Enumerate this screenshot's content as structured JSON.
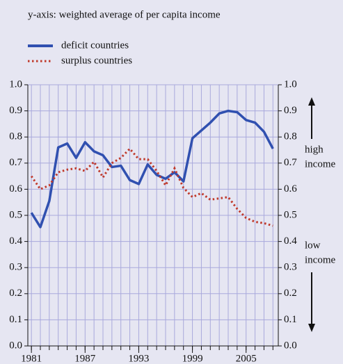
{
  "chart_data": {
    "type": "line",
    "subtitle": "y-axis: weighted average of per capita income",
    "x": [
      1981,
      1982,
      1983,
      1984,
      1985,
      1986,
      1987,
      1988,
      1989,
      1990,
      1991,
      1992,
      1993,
      1994,
      1995,
      1996,
      1997,
      1998,
      1999,
      2000,
      2001,
      2002,
      2003,
      2004,
      2005,
      2006,
      2007,
      2008
    ],
    "series": [
      {
        "name": "deficit countries",
        "color": "#3050b0",
        "values": [
          0.51,
          0.455,
          0.555,
          0.76,
          0.775,
          0.72,
          0.78,
          0.745,
          0.73,
          0.685,
          0.69,
          0.635,
          0.62,
          0.695,
          0.655,
          0.64,
          0.665,
          0.63,
          0.795,
          0.825,
          0.855,
          0.89,
          0.9,
          0.895,
          0.865,
          0.855,
          0.82,
          0.755
        ]
      },
      {
        "name": "surplus countries",
        "color": "#c0392b",
        "values": [
          0.65,
          0.6,
          0.615,
          0.665,
          0.675,
          0.68,
          0.67,
          0.705,
          0.645,
          0.7,
          0.72,
          0.755,
          0.715,
          0.715,
          0.67,
          0.615,
          0.68,
          0.605,
          0.57,
          0.585,
          0.56,
          0.565,
          0.57,
          0.525,
          0.49,
          0.475,
          0.47,
          0.46
        ]
      }
    ],
    "xlim": [
      1980.6,
      2008.6
    ],
    "xticks": [
      1981,
      1987,
      1993,
      1999,
      2005
    ],
    "ylim": [
      0,
      1
    ],
    "yticks": [
      {
        "value": 0,
        "label": "0.0"
      },
      0.1,
      0.2,
      0.3,
      0.4,
      0.5,
      0.6,
      0.7,
      0.8,
      0.9,
      {
        "value": 1,
        "label": "1.0"
      }
    ],
    "annotations": {
      "high": "high",
      "high_income": "income",
      "low": "low",
      "low_income": "income"
    },
    "grid": true
  }
}
